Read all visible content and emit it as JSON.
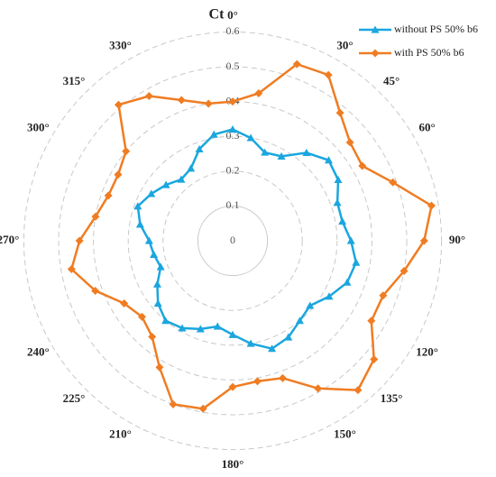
{
  "chart_data": {
    "type": "polar",
    "radial_axis_label": "Ct",
    "theta": [
      0,
      10,
      20,
      30,
      40,
      50,
      60,
      70,
      80,
      90,
      100,
      110,
      120,
      130,
      140,
      150,
      160,
      170,
      180,
      190,
      200,
      210,
      220,
      230,
      240,
      250,
      260,
      270,
      280,
      290,
      300,
      310,
      320,
      330,
      340,
      350
    ],
    "rlim": [
      0,
      0.6
    ],
    "rticks": [
      0,
      0.1,
      0.2,
      0.3,
      0.4,
      0.5,
      0.6
    ],
    "thetaticks": [
      {
        "value": 0,
        "label": "0°"
      },
      {
        "value": 30,
        "label": "30°"
      },
      {
        "value": 45,
        "label": "45°"
      },
      {
        "value": 60,
        "label": "60°"
      },
      {
        "value": 90,
        "label": "90°"
      },
      {
        "value": 120,
        "label": "120°"
      },
      {
        "value": 135,
        "label": "135°"
      },
      {
        "value": 150,
        "label": "150°"
      },
      {
        "value": 180,
        "label": "180°"
      },
      {
        "value": 210,
        "label": "210°"
      },
      {
        "value": 225,
        "label": "225°"
      },
      {
        "value": 240,
        "label": "240°"
      },
      {
        "value": 270,
        "label": "270°"
      },
      {
        "value": 300,
        "label": "300°"
      },
      {
        "value": 315,
        "label": "315°"
      },
      {
        "value": 330,
        "label": "330°"
      }
    ],
    "grid": true,
    "legend": "top-right",
    "series": [
      {
        "name": "without PS 50% b6",
        "color": "#1aa6df",
        "marker": "triangle",
        "values": [
          0.32,
          0.3,
          0.27,
          0.28,
          0.33,
          0.36,
          0.35,
          0.32,
          0.32,
          0.34,
          0.36,
          0.35,
          0.32,
          0.29,
          0.3,
          0.32,
          0.33,
          0.3,
          0.27,
          0.25,
          0.27,
          0.29,
          0.3,
          0.28,
          0.25,
          0.22,
          0.23,
          0.24,
          0.27,
          0.29,
          0.27,
          0.25,
          0.23,
          0.24,
          0.28,
          0.31
        ]
      },
      {
        "name": "with PS 50% b6",
        "color": "#f07c22",
        "marker": "diamond",
        "values": [
          0.4,
          0.43,
          0.54,
          0.55,
          0.48,
          0.44,
          0.43,
          0.49,
          0.58,
          0.55,
          0.5,
          0.46,
          0.46,
          0.53,
          0.56,
          0.49,
          0.42,
          0.41,
          0.42,
          0.49,
          0.5,
          0.42,
          0.36,
          0.34,
          0.36,
          0.42,
          0.47,
          0.44,
          0.4,
          0.38,
          0.38,
          0.4,
          0.51,
          0.48,
          0.43,
          0.4
        ]
      }
    ]
  }
}
